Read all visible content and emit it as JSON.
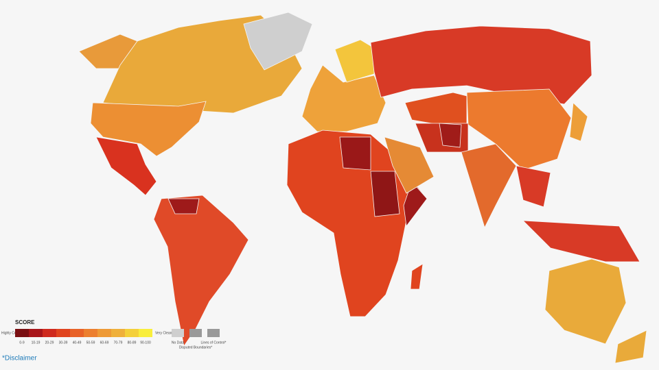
{
  "legend": {
    "title": "SCORE",
    "low_label": "Highly Corrupt",
    "high_label": "Very Clean",
    "bins": [
      {
        "label": "0-9",
        "color": "#7a0f12"
      },
      {
        "label": "10-19",
        "color": "#a8161a"
      },
      {
        "label": "20-29",
        "color": "#cf2a1e"
      },
      {
        "label": "30-39",
        "color": "#e0441f"
      },
      {
        "label": "40-49",
        "color": "#e86228"
      },
      {
        "label": "50-59",
        "color": "#ec7f2f"
      },
      {
        "label": "60-69",
        "color": "#ee9a36"
      },
      {
        "label": "70-79",
        "color": "#efb03b"
      },
      {
        "label": "80-89",
        "color": "#f4d03a"
      },
      {
        "label": "90-100",
        "color": "#f9ee3c"
      }
    ],
    "no_data": "No Data",
    "disputed": "Disputed Boundaries*",
    "lines_of_control": "Lines of Control*"
  },
  "disclaimer": "*Disclaimer"
}
